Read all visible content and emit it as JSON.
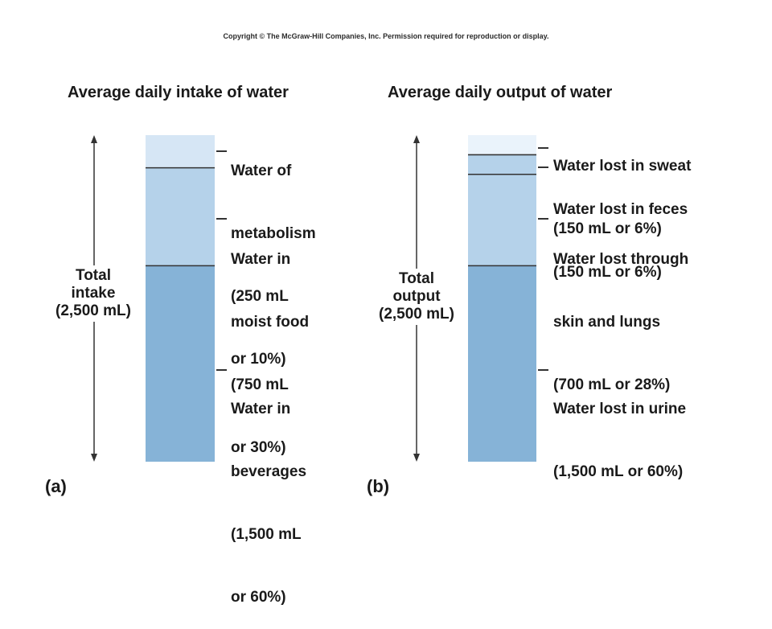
{
  "copyright": "Copyright © The McGraw-Hill Companies, Inc. Permission required for reproduction or display.",
  "colors": {
    "top_segment": "#d6e6f5",
    "middle_segment": "#b5d2ea",
    "bottom_segment": "#86b3d7",
    "divider": "#333333",
    "text": "#1a1a1a"
  },
  "chart_data": [
    {
      "type": "bar",
      "subtype": "stacked-column",
      "panel": "(a)",
      "title": "Average daily intake of water",
      "total_label": "Total intake (2,500 mL)",
      "total_lines": [
        "Total",
        "intake",
        "(2,500 mL)"
      ],
      "unit": "mL",
      "total": 2500,
      "segments_bottom_to_top": [
        {
          "name": "Water in beverages",
          "value": 1500,
          "percent": 60,
          "label_lines": [
            "Water in",
            "beverages",
            "(1,500 mL",
            "or 60%)"
          ]
        },
        {
          "name": "Water in moist food",
          "value": 750,
          "percent": 30,
          "label_lines": [
            "Water in",
            "moist food",
            "(750 mL",
            "or 30%)"
          ]
        },
        {
          "name": "Water of metabolism",
          "value": 250,
          "percent": 10,
          "label_lines": [
            "Water of",
            "metabolism",
            "(250 mL",
            "or 10%)"
          ]
        }
      ]
    },
    {
      "type": "bar",
      "subtype": "stacked-column",
      "panel": "(b)",
      "title": "Average daily output of water",
      "total_label": "Total output (2,500 mL)",
      "total_lines": [
        "Total",
        "output",
        "(2,500 mL)"
      ],
      "unit": "mL",
      "total": 2500,
      "segments_bottom_to_top": [
        {
          "name": "Water lost in urine",
          "value": 1500,
          "percent": 60,
          "label_lines": [
            "Water lost in urine",
            "(1,500 mL or 60%)"
          ]
        },
        {
          "name": "Water lost through skin and lungs",
          "value": 700,
          "percent": 28,
          "label_lines": [
            "Water lost through",
            "skin and lungs",
            "(700 mL or 28%)"
          ]
        },
        {
          "name": "Water lost in feces",
          "value": 150,
          "percent": 6,
          "label_lines": [
            "Water lost in feces",
            "(150 mL or 6%)"
          ]
        },
        {
          "name": "Water lost in sweat",
          "value": 150,
          "percent": 6,
          "label_lines": [
            "Water lost in sweat",
            "(150 mL or 6%)"
          ]
        }
      ]
    }
  ]
}
